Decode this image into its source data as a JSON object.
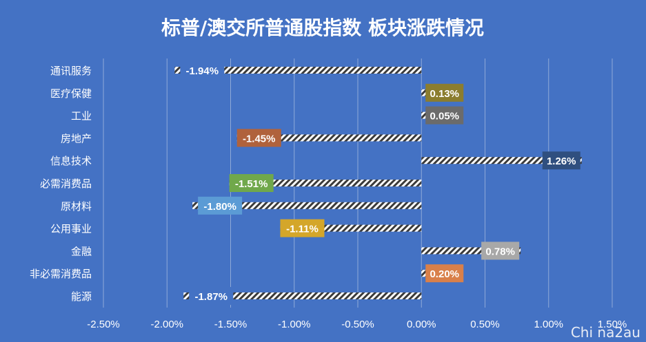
{
  "chart_data": {
    "type": "bar",
    "orientation": "horizontal",
    "title": "标普/澳交所普通股指数 板块涨跌情况",
    "categories": [
      "通讯服务",
      "医疗保健",
      "工业",
      "房地产",
      "信息技术",
      "必需消费品",
      "原材料",
      "公用事业",
      "金融",
      "非必需消费品",
      "能源"
    ],
    "values": [
      -1.94,
      0.13,
      0.05,
      -1.45,
      1.26,
      -1.51,
      -1.8,
      -1.11,
      0.78,
      0.2,
      -1.87
    ],
    "data_labels": [
      "-1.94%",
      "0.13%",
      "0.05%",
      "-1.45%",
      "1.26%",
      "-1.51%",
      "-1.80%",
      "-1.11%",
      "0.78%",
      "0.20%",
      "-1.87%"
    ],
    "label_colors": [
      "#4472c4",
      "#8b7d2e",
      "#6b6b6b",
      "#b0623c",
      "#2f4f7f",
      "#70a84b",
      "#5b9bd5",
      "#d4a62a",
      "#a8a8a8",
      "#d9804a",
      "#4472c4"
    ],
    "xlim": [
      -2.5,
      1.5
    ],
    "ticks": [
      -2.5,
      -2.0,
      -1.5,
      -1.0,
      -0.5,
      0.0,
      0.5,
      1.0,
      1.5
    ],
    "tick_labels": [
      "-2.50%",
      "-2.00%",
      "-1.50%",
      "-1.00%",
      "-0.50%",
      "0.00%",
      "0.50%",
      "1.00%",
      "1.50%"
    ],
    "grid": true,
    "bar_pattern": "diagonal-stripes",
    "colors": {
      "background": "#4472c4",
      "grid": "#8fa9d8",
      "bar_stripe": "#ffffff"
    }
  },
  "watermark": "Chi na2au"
}
